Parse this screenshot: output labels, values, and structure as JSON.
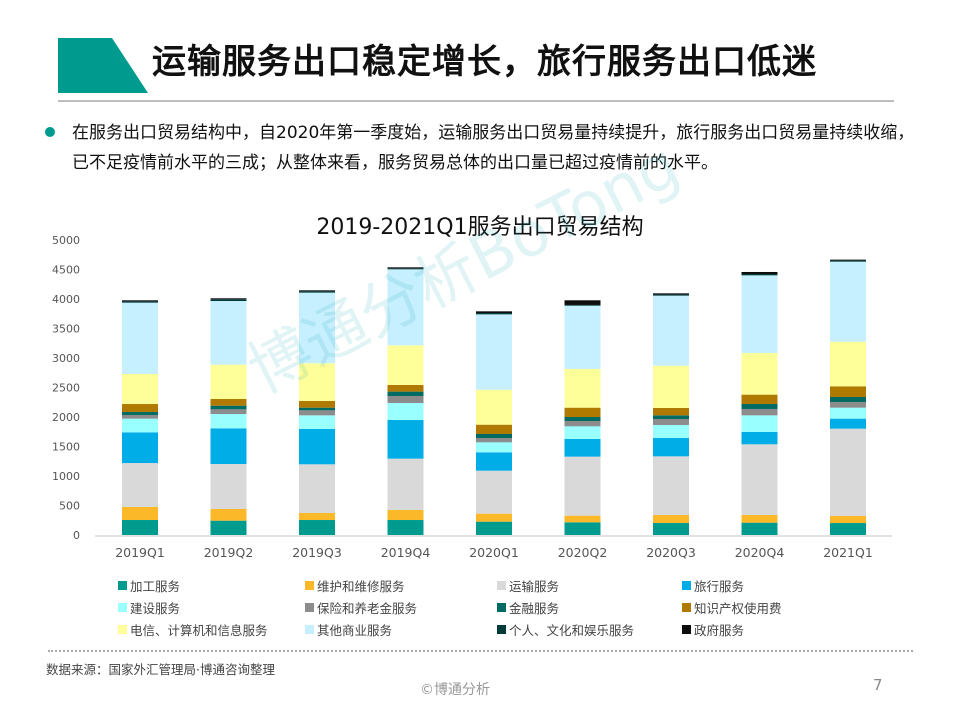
{
  "header": {
    "title": "运输服务出口稳定增长，旅行服务出口低迷",
    "accent": "#009b8f"
  },
  "body": {
    "text": "在服务出口贸易结构中，自2020年第一季度始，运输服务出口贸易量持续提升，旅行服务出口贸易量持续收缩，已不足疫情前水平的三成；从整体来看，服务贸易总体的出口量已超过疫情前的水平。"
  },
  "watermark": "博通分析BoTong",
  "chart_data": {
    "type": "bar",
    "stacked": true,
    "title": "2019-2021Q1服务出口贸易结构",
    "ylim": [
      0,
      5000
    ],
    "yticks": [
      0,
      500,
      1000,
      1500,
      2000,
      2500,
      3000,
      3500,
      4000,
      4500,
      5000
    ],
    "grid": false,
    "legend_position": "bottom",
    "categories": [
      "2019Q1",
      "2019Q2",
      "2019Q3",
      "2019Q4",
      "2020Q1",
      "2020Q2",
      "2020Q3",
      "2020Q4",
      "2021Q1"
    ],
    "series": [
      {
        "name": "加工服务",
        "color": "#009b8f",
        "values": [
          254,
          243,
          254,
          254,
          226,
          215,
          203,
          209,
          203
        ]
      },
      {
        "name": "维护和维修服务",
        "color": "#fbb829",
        "values": [
          221,
          198,
          119,
          170,
          136,
          113,
          136,
          130,
          119
        ]
      },
      {
        "name": "运输服务",
        "color": "#d9d9d9",
        "values": [
          745,
          762,
          825,
          870,
          728,
          1000,
          994,
          1198,
          1480
        ]
      },
      {
        "name": "旅行服务",
        "color": "#00ade6",
        "values": [
          520,
          605,
          599,
          655,
          311,
          299,
          311,
          209,
          170
        ]
      },
      {
        "name": "建设服务",
        "color": "#99ffff",
        "values": [
          232,
          243,
          231,
          288,
          170,
          215,
          221,
          282,
          186
        ]
      },
      {
        "name": "保险和养老金服务",
        "color": "#8c8c8c",
        "values": [
          62,
          79,
          85,
          119,
          73,
          90,
          101,
          108,
          96
        ]
      },
      {
        "name": "金融服务",
        "color": "#006b63",
        "values": [
          51,
          62,
          45,
          74,
          68,
          68,
          62,
          84,
          85
        ]
      },
      {
        "name": "知识产权使用费",
        "color": "#b07a00",
        "values": [
          135,
          113,
          113,
          113,
          158,
          158,
          125,
          159,
          181
        ]
      },
      {
        "name": "电信、计算机和信息服务",
        "color": "#ffff99",
        "values": [
          509,
          582,
          639,
          672,
          593,
          656,
          717,
          706,
          757
        ]
      },
      {
        "name": "其他商业服务",
        "color": "#c6efff",
        "values": [
          1209,
          1079,
          1198,
          1288,
          1277,
          1073,
          1187,
          1316,
          1356
        ]
      },
      {
        "name": "个人、文化和娱乐服务",
        "color": "#003c3c",
        "values": [
          22,
          29,
          22,
          17,
          23,
          12,
          17,
          23,
          17
        ]
      },
      {
        "name": "政府服务",
        "color": "#0d0d0d",
        "values": [
          18,
          17,
          17,
          17,
          28,
          79,
          22,
          34,
          17
        ]
      }
    ]
  },
  "footer": {
    "source": "数据来源：国家外汇管理局·博通咨询整理",
    "copyright": "©博通分析",
    "page": "7"
  }
}
